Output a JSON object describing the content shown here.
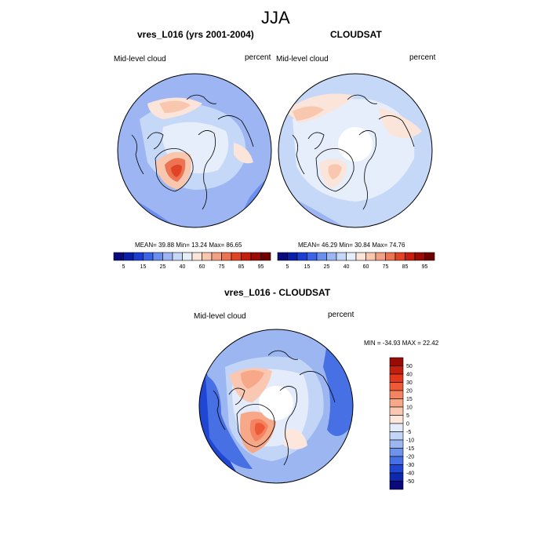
{
  "figure_title": "JJA",
  "panels": [
    {
      "title": "vres_L016 (yrs 2001-2004)",
      "left_label": "Mid-level cloud",
      "right_label": "percent",
      "stats": {
        "mean_label": "MEAN=",
        "mean": "39.88",
        "min_label": "Min=",
        "min": "13.24",
        "max_label": "Max=",
        "max": "86.65"
      }
    },
    {
      "title": "CLOUDSAT",
      "left_label": "Mid-level cloud",
      "right_label": "percent",
      "stats": {
        "mean_label": "MEAN=",
        "mean": "46.29",
        "min_label": "Min=",
        "min": "30.84",
        "max_label": "Max=",
        "max": "74.76"
      }
    },
    {
      "title": "vres_L016 - CLOUDSAT",
      "left_label": "Mid-level cloud",
      "right_label": "percent",
      "minmax_text": "MIN = -34.93  MAX =  22.42"
    }
  ],
  "colorbar_top": {
    "labels": [
      "5",
      "15",
      "25",
      "40",
      "60",
      "75",
      "85",
      "95"
    ],
    "colors": [
      "#0a0a7d",
      "#0b1ea8",
      "#1a3fd0",
      "#3b64e8",
      "#6b8fef",
      "#9db6f3",
      "#c6d8f8",
      "#e6eefb",
      "#fbe4d9",
      "#f9c6ae",
      "#f3a184",
      "#ec7453",
      "#e14424",
      "#c41e0e",
      "#9a0b05",
      "#6e0000"
    ]
  },
  "colorbar_diff": {
    "labels": [
      "50",
      "40",
      "30",
      "20",
      "15",
      "10",
      "5",
      "0",
      "-5",
      "-10",
      "-15",
      "-20",
      "-30",
      "-40",
      "-50"
    ],
    "colors": [
      "#9a0b05",
      "#c41e0e",
      "#e3361a",
      "#ee5a35",
      "#f48461",
      "#f7a889",
      "#fac8b2",
      "#fde7dc",
      "#e4ecfb",
      "#c3d5f6",
      "#9bb6f1",
      "#6f92eb",
      "#4670e4",
      "#2047d4",
      "#0d28ad",
      "#0a0a7d"
    ]
  }
}
